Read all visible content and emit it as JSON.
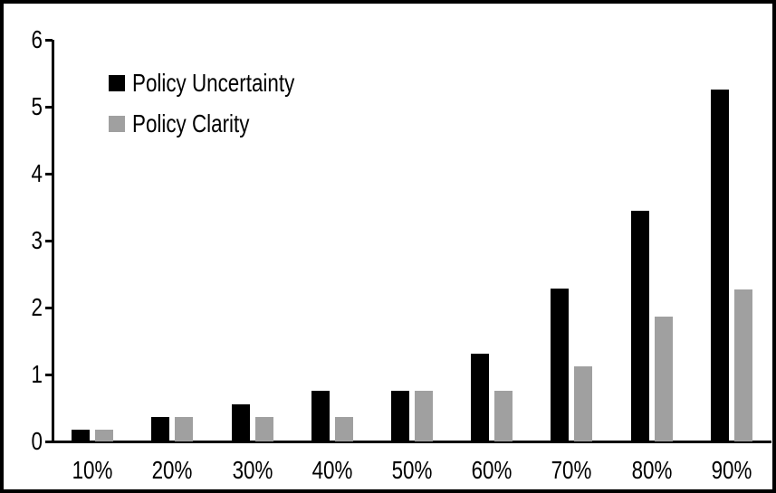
{
  "chart_data": {
    "type": "bar",
    "title": "",
    "categories": [
      "10%",
      "20%",
      "30%",
      "40%",
      "50%",
      "60%",
      "70%",
      "80%",
      "90%"
    ],
    "series": [
      {
        "name": "Policy Uncertainty",
        "color": "#000000",
        "values": [
          0.17,
          0.37,
          0.55,
          0.76,
          0.76,
          1.31,
          2.28,
          3.45,
          5.26
        ]
      },
      {
        "name": "Policy Clarity",
        "color": "#A0A0A0",
        "values": [
          0.17,
          0.37,
          0.37,
          0.37,
          0.76,
          0.76,
          1.12,
          1.86,
          2.27
        ]
      }
    ],
    "ylim": [
      0,
      6
    ],
    "yticks": [
      0,
      1,
      2,
      3,
      4,
      5,
      6
    ],
    "legend_position": "top-left",
    "grid": false,
    "axis_color": "#000000",
    "frame_color": "#000000",
    "background": "#ffffff"
  }
}
